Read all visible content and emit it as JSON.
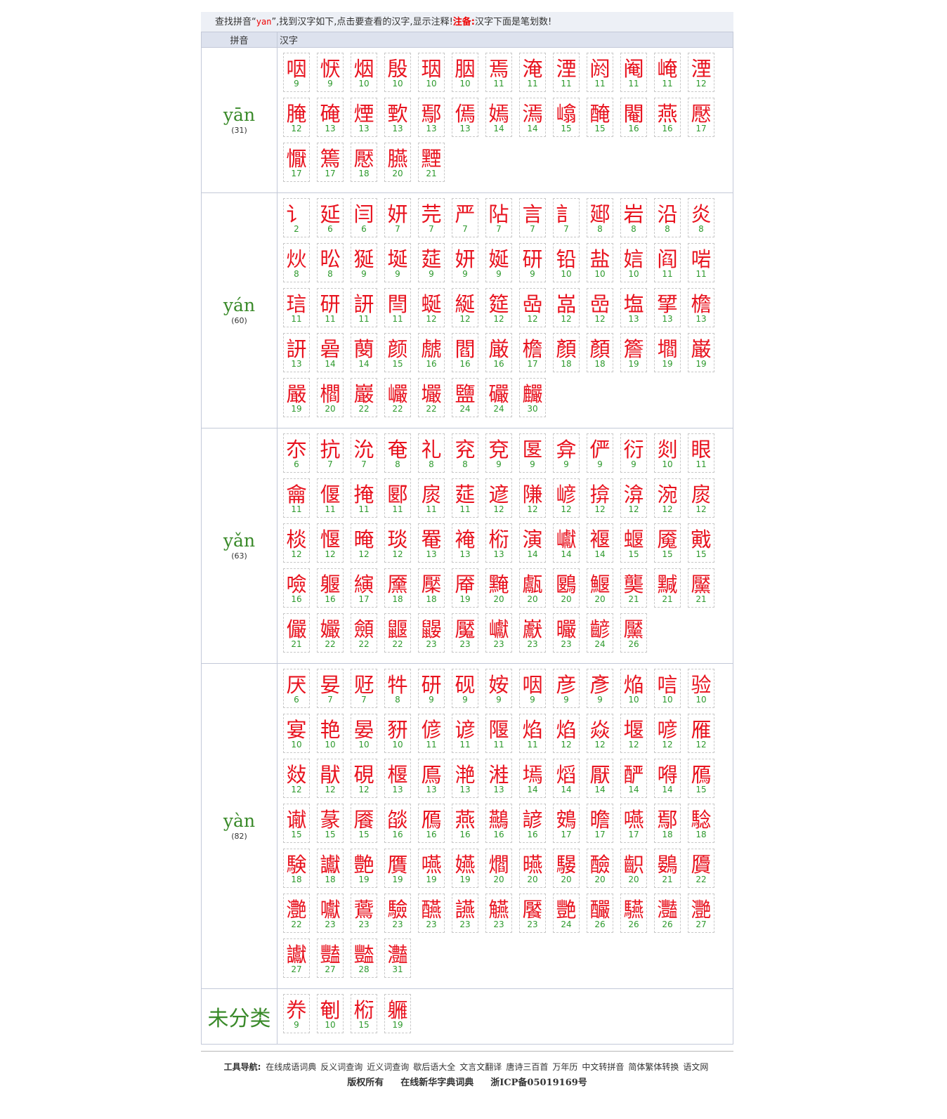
{
  "intro": {
    "prefix": "查找拼音“",
    "keyword": "yan",
    "suffix": "”,找到汉字如下,点击要查看的汉字,显示注释!",
    "note_label": "注备:",
    "note_text": "汉字下面是笔划数!"
  },
  "headers": {
    "pinyin": "拼音",
    "hanzi": "汉字"
  },
  "groups": [
    {
      "pinyin": "yān",
      "count": "(31)",
      "chars": [
        [
          "咽",
          "9"
        ],
        [
          "恹",
          "9"
        ],
        [
          "烟",
          "10"
        ],
        [
          "殷",
          "10"
        ],
        [
          "珚",
          "10"
        ],
        [
          "胭",
          "10"
        ],
        [
          "焉",
          "11"
        ],
        [
          "淹",
          "11"
        ],
        [
          "湮",
          "11"
        ],
        [
          "阏",
          "11"
        ],
        [
          "阉",
          "11"
        ],
        [
          "崦",
          "11"
        ],
        [
          "湮",
          "12"
        ],
        [
          "腌",
          "12"
        ],
        [
          "硽",
          "13"
        ],
        [
          "煙",
          "13"
        ],
        [
          "歅",
          "13"
        ],
        [
          "鄢",
          "13"
        ],
        [
          "傿",
          "13"
        ],
        [
          "嫣",
          "14"
        ],
        [
          "漹",
          "14"
        ],
        [
          "嶖",
          "15"
        ],
        [
          "醃",
          "15"
        ],
        [
          "閹",
          "16"
        ],
        [
          "燕",
          "16"
        ],
        [
          "懕",
          "17"
        ],
        [
          "懨",
          "17"
        ],
        [
          "篶",
          "17"
        ],
        [
          "懕",
          "18"
        ],
        [
          "臙",
          "20"
        ],
        [
          "黫",
          "21"
        ]
      ]
    },
    {
      "pinyin": "yán",
      "count": "(60)",
      "chars": [
        [
          "讠",
          "2"
        ],
        [
          "延",
          "6"
        ],
        [
          "闫",
          "6"
        ],
        [
          "妍",
          "7"
        ],
        [
          "芫",
          "7"
        ],
        [
          "严",
          "7"
        ],
        [
          "阽",
          "7"
        ],
        [
          "言",
          "7"
        ],
        [
          "訁",
          "7"
        ],
        [
          "郔",
          "8"
        ],
        [
          "岩",
          "8"
        ],
        [
          "沿",
          "8"
        ],
        [
          "炎",
          "8"
        ],
        [
          "炏",
          "8"
        ],
        [
          "昖",
          "8"
        ],
        [
          "狿",
          "9"
        ],
        [
          "埏",
          "9"
        ],
        [
          "莚",
          "9"
        ],
        [
          "妍",
          "9"
        ],
        [
          "娫",
          "9"
        ],
        [
          "研",
          "9"
        ],
        [
          "铅",
          "10"
        ],
        [
          "盐",
          "10"
        ],
        [
          "娮",
          "10"
        ],
        [
          "阎",
          "11"
        ],
        [
          "啱",
          "11"
        ],
        [
          "琂",
          "11"
        ],
        [
          "研",
          "11"
        ],
        [
          "訮",
          "11"
        ],
        [
          "閆",
          "11"
        ],
        [
          "蜒",
          "12"
        ],
        [
          "綖",
          "12"
        ],
        [
          "筵",
          "12"
        ],
        [
          "喦",
          "12"
        ],
        [
          "嵓",
          "12"
        ],
        [
          "嵒",
          "12"
        ],
        [
          "塩",
          "13"
        ],
        [
          "揅",
          "13"
        ],
        [
          "檐",
          "13"
        ],
        [
          "訮",
          "13"
        ],
        [
          "碞",
          "14"
        ],
        [
          "蔅",
          "14"
        ],
        [
          "颜",
          "15"
        ],
        [
          "虤",
          "16"
        ],
        [
          "閻",
          "16"
        ],
        [
          "厳",
          "16"
        ],
        [
          "檐",
          "17"
        ],
        [
          "顏",
          "18"
        ],
        [
          "顏",
          "18"
        ],
        [
          "簷",
          "19"
        ],
        [
          "壛",
          "19"
        ],
        [
          "巌",
          "19"
        ],
        [
          "嚴",
          "19"
        ],
        [
          "櫩",
          "20"
        ],
        [
          "巖",
          "22"
        ],
        [
          "巗",
          "22"
        ],
        [
          "壧",
          "22"
        ],
        [
          "鹽",
          "24"
        ],
        [
          "礹",
          "24"
        ],
        [
          "麣",
          "30"
        ]
      ]
    },
    {
      "pinyin": "yǎn",
      "count": "(63)",
      "chars": [
        [
          "夵",
          "6"
        ],
        [
          "抗",
          "7"
        ],
        [
          "沇",
          "7"
        ],
        [
          "奄",
          "8"
        ],
        [
          "礼",
          "8"
        ],
        [
          "兖",
          "8"
        ],
        [
          "兗",
          "9"
        ],
        [
          "匽",
          "9"
        ],
        [
          "弇",
          "9"
        ],
        [
          "俨",
          "9"
        ],
        [
          "衍",
          "9"
        ],
        [
          "剡",
          "10"
        ],
        [
          "眼",
          "11"
        ],
        [
          "龠",
          "11"
        ],
        [
          "偃",
          "11"
        ],
        [
          "掩",
          "11"
        ],
        [
          "郾",
          "11"
        ],
        [
          "扊",
          "11"
        ],
        [
          "莚",
          "11"
        ],
        [
          "遃",
          "12"
        ],
        [
          "隒",
          "12"
        ],
        [
          "嵃",
          "12"
        ],
        [
          "揜",
          "12"
        ],
        [
          "渰",
          "12"
        ],
        [
          "涴",
          "12"
        ],
        [
          "扊",
          "12"
        ],
        [
          "棪",
          "12"
        ],
        [
          "愝",
          "12"
        ],
        [
          "晻",
          "12"
        ],
        [
          "琰",
          "12"
        ],
        [
          "罨",
          "13"
        ],
        [
          "裺",
          "13"
        ],
        [
          "椼",
          "13"
        ],
        [
          "演",
          "14"
        ],
        [
          "巘",
          "14"
        ],
        [
          "褗",
          "14"
        ],
        [
          "蝘",
          "15"
        ],
        [
          "魇",
          "15"
        ],
        [
          "戭",
          "15"
        ],
        [
          "噞",
          "16"
        ],
        [
          "躽",
          "16"
        ],
        [
          "縯",
          "17"
        ],
        [
          "黡",
          "18"
        ],
        [
          "檿",
          "18"
        ],
        [
          "厣",
          "19"
        ],
        [
          "黤",
          "20"
        ],
        [
          "甗",
          "20"
        ],
        [
          "鶠",
          "20"
        ],
        [
          "鰋",
          "20"
        ],
        [
          "龑",
          "21"
        ],
        [
          "黬",
          "21"
        ],
        [
          "黶",
          "21"
        ],
        [
          "儼",
          "21"
        ],
        [
          "孍",
          "22"
        ],
        [
          "顩",
          "22"
        ],
        [
          "鼴",
          "22"
        ],
        [
          "鼹",
          "23"
        ],
        [
          "魘",
          "23"
        ],
        [
          "巘",
          "23"
        ],
        [
          "巚",
          "23"
        ],
        [
          "曮",
          "23"
        ],
        [
          "齴",
          "24"
        ],
        [
          "黶",
          "26"
        ]
      ]
    },
    {
      "pinyin": "yàn",
      "count": "(82)",
      "chars": [
        [
          "厌",
          "6"
        ],
        [
          "妟",
          "7"
        ],
        [
          "觃",
          "7"
        ],
        [
          "牪",
          "8"
        ],
        [
          "研",
          "9"
        ],
        [
          "砚",
          "9"
        ],
        [
          "姲",
          "9"
        ],
        [
          "咽",
          "9"
        ],
        [
          "彦",
          "9"
        ],
        [
          "彥",
          "9"
        ],
        [
          "焔",
          "10"
        ],
        [
          "唁",
          "10"
        ],
        [
          "验",
          "10"
        ],
        [
          "宴",
          "10"
        ],
        [
          "艳",
          "10"
        ],
        [
          "晏",
          "10"
        ],
        [
          "豜",
          "10"
        ],
        [
          "偐",
          "11"
        ],
        [
          "谚",
          "11"
        ],
        [
          "隁",
          "11"
        ],
        [
          "焰",
          "11"
        ],
        [
          "焰",
          "12"
        ],
        [
          "焱",
          "12"
        ],
        [
          "堰",
          "12"
        ],
        [
          "喭",
          "12"
        ],
        [
          "雁",
          "12"
        ],
        [
          "敥",
          "12"
        ],
        [
          "猒",
          "12"
        ],
        [
          "硯",
          "12"
        ],
        [
          "椻",
          "13"
        ],
        [
          "鳫",
          "13"
        ],
        [
          "滟",
          "13"
        ],
        [
          "溎",
          "13"
        ],
        [
          "墕",
          "14"
        ],
        [
          "熖",
          "14"
        ],
        [
          "厭",
          "14"
        ],
        [
          "酽",
          "14"
        ],
        [
          "嘚",
          "14"
        ],
        [
          "鴈",
          "15"
        ],
        [
          "谳",
          "15"
        ],
        [
          "蒃",
          "15"
        ],
        [
          "餍",
          "15"
        ],
        [
          "燄",
          "16"
        ],
        [
          "鴈",
          "16"
        ],
        [
          "燕",
          "16"
        ],
        [
          "䴏",
          "16"
        ],
        [
          "諺",
          "16"
        ],
        [
          "鴳",
          "17"
        ],
        [
          "曕",
          "17"
        ],
        [
          "嚥",
          "17"
        ],
        [
          "鄢",
          "18"
        ],
        [
          "騐",
          "18"
        ],
        [
          "験",
          "18"
        ],
        [
          "讞",
          "18"
        ],
        [
          "艶",
          "19"
        ],
        [
          "贋",
          "19"
        ],
        [
          "嚥",
          "19"
        ],
        [
          "嬿",
          "19"
        ],
        [
          "爓",
          "20"
        ],
        [
          "曣",
          "20"
        ],
        [
          "騴",
          "20"
        ],
        [
          "醶",
          "20"
        ],
        [
          "齞",
          "20"
        ],
        [
          "鷃",
          "21"
        ],
        [
          "贗",
          "22"
        ],
        [
          "灔",
          "22"
        ],
        [
          "囐",
          "23"
        ],
        [
          "鷰",
          "23"
        ],
        [
          "驗",
          "23"
        ],
        [
          "醼",
          "23"
        ],
        [
          "讌",
          "23"
        ],
        [
          "觾",
          "23"
        ],
        [
          "饜",
          "23"
        ],
        [
          "艷",
          "24"
        ],
        [
          "釅",
          "26"
        ],
        [
          "驠",
          "26"
        ],
        [
          "灩",
          "26"
        ],
        [
          "灧",
          "27"
        ],
        [
          "讞",
          "27"
        ],
        [
          "豔",
          "27"
        ],
        [
          "豓",
          "28"
        ],
        [
          "灎",
          "31"
        ]
      ]
    },
    {
      "pinyin": "",
      "count": "",
      "label": "未分类",
      "chars": [
        [
          "奍",
          "9"
        ],
        [
          "剦",
          "10"
        ],
        [
          "椼",
          "15"
        ],
        [
          "軅",
          "19"
        ]
      ]
    }
  ],
  "footer": {
    "nav_label": "工具导航:",
    "links": [
      "在线成语词典",
      "反义词查询",
      "近义词查询",
      "歇后语大全",
      "文言文翻译",
      "唐诗三百首",
      "万年历",
      "中文转拼音",
      "简体繁体转换",
      "语文网"
    ],
    "copyright": "版权所有",
    "site": "在线新华字典词典",
    "icp": "浙ICP备05019169号"
  }
}
